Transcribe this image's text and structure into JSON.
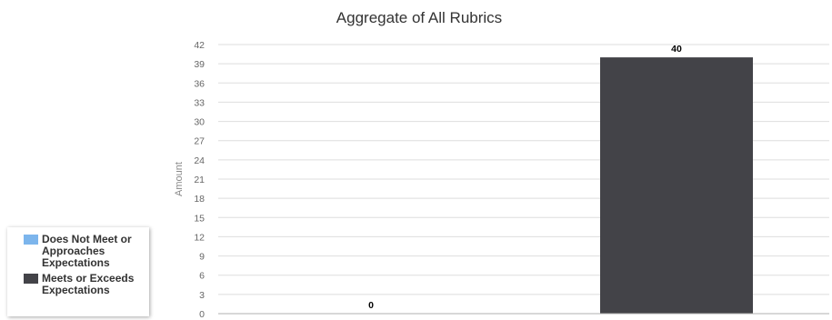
{
  "chart_data": {
    "type": "bar",
    "title": "Aggregate of All Rubrics",
    "ylabel": "Amount",
    "xlabel": "",
    "ylim": [
      0,
      42
    ],
    "yticks": [
      0,
      3,
      6,
      9,
      12,
      15,
      18,
      21,
      24,
      27,
      30,
      33,
      36,
      39,
      42
    ],
    "grid": true,
    "legend_position": "bottom-left",
    "series": [
      {
        "name": "Does Not Meet or Approaches Expectations",
        "values": [
          0
        ],
        "color": "#7cb5ec"
      },
      {
        "name": "Meets or Exceeds Expectations",
        "values": [
          40
        ],
        "color": "#434348"
      }
    ]
  }
}
